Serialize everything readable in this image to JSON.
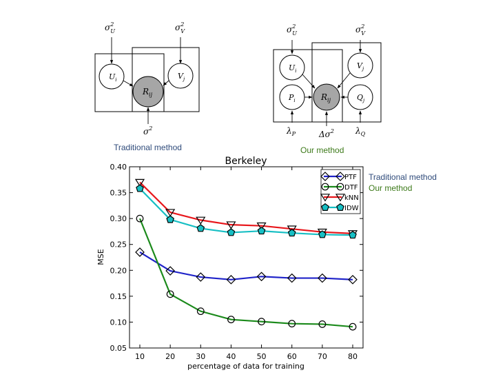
{
  "diagrams": {
    "traditional": {
      "caption": "Traditional method",
      "nodes": {
        "U": "U",
        "U_sub": "i",
        "V": "V",
        "V_sub": "j",
        "R": "R",
        "R_sub": "ij"
      },
      "priors": {
        "sigma_u": "σ",
        "sigma_u_sup": "2",
        "sigma_u_sub": "U",
        "sigma_v": "σ",
        "sigma_v_sup": "2",
        "sigma_v_sub": "V",
        "sigma": "σ",
        "sigma_sup": "2"
      }
    },
    "ours": {
      "caption": "Our method",
      "nodes": {
        "U": "U",
        "U_sub": "i",
        "V": "V",
        "V_sub": "j",
        "R": "R",
        "R_sub": "ij",
        "P": "P",
        "P_sub": "i",
        "Q": "Q",
        "Q_sub": "j"
      },
      "priors": {
        "sigma_u": "σ",
        "sigma_u_sup": "2",
        "sigma_u_sub": "U",
        "sigma_v": "σ",
        "sigma_v_sup": "2",
        "sigma_v_sub": "V",
        "lambda_p": "λ",
        "lambda_p_sub": "P",
        "delta_sigma": "Δσ",
        "delta_sigma_sup": "2",
        "lambda_q": "λ",
        "lambda_q_sub": "Q"
      }
    }
  },
  "side_labels": {
    "traditional": "Traditional method",
    "ours": "Our method"
  },
  "colors": {
    "traditional_label": "#2e4a7a",
    "ours_label": "#3d7a1a",
    "node_fill": "#ffffff",
    "observed_fill": "#a6a6a6",
    "stroke": "#000000"
  },
  "chart_data": {
    "type": "line",
    "title": "Berkeley",
    "xlabel": "percentage of data for training",
    "ylabel": "MSE",
    "x": [
      10,
      20,
      30,
      40,
      50,
      60,
      70,
      80
    ],
    "xlim": [
      10,
      80
    ],
    "ylim": [
      0.05,
      0.4
    ],
    "xticks": [
      10,
      20,
      30,
      40,
      50,
      60,
      70,
      80
    ],
    "yticks": [
      0.05,
      0.1,
      0.15,
      0.2,
      0.25,
      0.3,
      0.35,
      0.4
    ],
    "yticklabels": [
      "0.05",
      "0.10",
      "0.15",
      "0.20",
      "0.25",
      "0.30",
      "0.35",
      "0.40"
    ],
    "grid": false,
    "legend": "top-right",
    "series": [
      {
        "name": "PTF",
        "color": "#1f23c9",
        "marker": "diamond",
        "values": [
          0.235,
          0.199,
          0.187,
          0.182,
          0.188,
          0.185,
          0.185,
          0.182
        ]
      },
      {
        "name": "DTF",
        "color": "#1b8a1b",
        "marker": "circle",
        "values": [
          0.3,
          0.154,
          0.121,
          0.105,
          0.101,
          0.097,
          0.096,
          0.091
        ]
      },
      {
        "name": "kNN",
        "color": "#e8161b",
        "marker": "triangle-down",
        "values": [
          0.37,
          0.312,
          0.297,
          0.288,
          0.286,
          0.28,
          0.274,
          0.271
        ]
      },
      {
        "name": "IDW",
        "color": "#17bfc4",
        "marker": "pentagon",
        "values": [
          0.358,
          0.298,
          0.281,
          0.273,
          0.276,
          0.272,
          0.269,
          0.268
        ]
      }
    ]
  }
}
